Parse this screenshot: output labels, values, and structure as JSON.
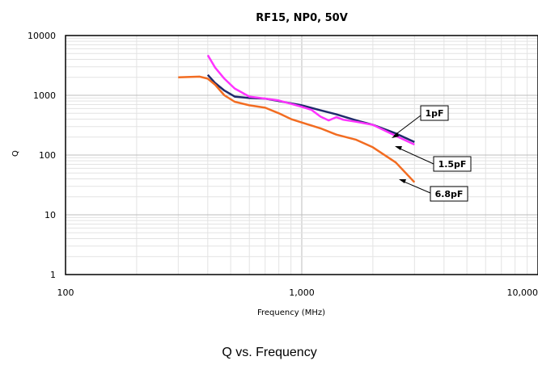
{
  "chart_data": {
    "type": "line",
    "title": "RF15, NP0, 50V",
    "xlabel": "Frequency (MHz)",
    "ylabel": "Q",
    "caption": "Q vs. Frequency",
    "xscale": "log",
    "yscale": "log",
    "xlim": [
      100,
      10000
    ],
    "ylim": [
      1,
      10000
    ],
    "x_ticks": [
      "100",
      "1,000",
      "10,000"
    ],
    "y_ticks": [
      "1",
      "10",
      "100",
      "1000",
      "10000"
    ],
    "grid": true,
    "series": [
      {
        "name": "1pF",
        "color": "#1f2a6b",
        "points": [
          [
            400,
            2200
          ],
          [
            430,
            1600
          ],
          [
            470,
            1200
          ],
          [
            520,
            950
          ],
          [
            600,
            900
          ],
          [
            700,
            880
          ],
          [
            800,
            800
          ],
          [
            1000,
            680
          ],
          [
            1200,
            560
          ],
          [
            1400,
            480
          ],
          [
            1700,
            380
          ],
          [
            2000,
            320
          ],
          [
            2500,
            230
          ],
          [
            3000,
            165
          ]
        ]
      },
      {
        "name": "1.5pF",
        "color": "#ff33ff",
        "points": [
          [
            400,
            4700
          ],
          [
            430,
            2900
          ],
          [
            470,
            1900
          ],
          [
            520,
            1300
          ],
          [
            600,
            950
          ],
          [
            700,
            880
          ],
          [
            800,
            820
          ],
          [
            1000,
            640
          ],
          [
            1100,
            570
          ],
          [
            1200,
            440
          ],
          [
            1300,
            380
          ],
          [
            1400,
            430
          ],
          [
            1500,
            390
          ],
          [
            1700,
            360
          ],
          [
            2000,
            320
          ],
          [
            2500,
            210
          ],
          [
            3000,
            150
          ]
        ]
      },
      {
        "name": "6.8pF",
        "color": "#f26c21",
        "points": [
          [
            300,
            2000
          ],
          [
            370,
            2050
          ],
          [
            400,
            1900
          ],
          [
            430,
            1500
          ],
          [
            470,
            1000
          ],
          [
            520,
            780
          ],
          [
            600,
            680
          ],
          [
            700,
            620
          ],
          [
            800,
            500
          ],
          [
            900,
            400
          ],
          [
            1000,
            350
          ],
          [
            1200,
            280
          ],
          [
            1400,
            220
          ],
          [
            1700,
            180
          ],
          [
            2000,
            135
          ],
          [
            2500,
            75
          ],
          [
            3000,
            35
          ]
        ]
      }
    ],
    "annotations": [
      {
        "text": "1pF",
        "series": "1pF"
      },
      {
        "text": "1.5pF",
        "series": "1.5pF"
      },
      {
        "text": "6.8pF",
        "series": "6.8pF"
      }
    ]
  }
}
